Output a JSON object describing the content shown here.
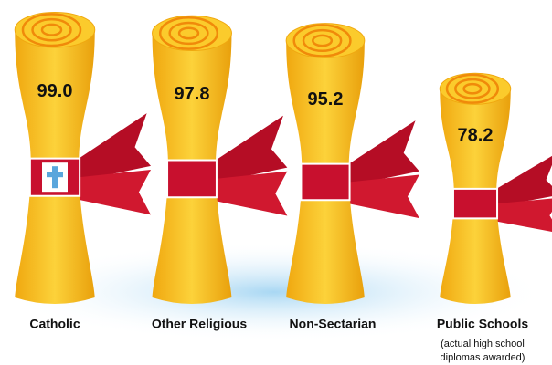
{
  "chart_data": {
    "type": "pictograph",
    "categories": [
      "Catholic",
      "Other Religious",
      "Non-Sectarian",
      "Public Schools"
    ],
    "values": [
      99.0,
      97.8,
      95.2,
      78.2
    ],
    "value_labels": [
      "99.0",
      "97.8",
      "95.2",
      "78.2"
    ],
    "annotation": [
      "(actual high school",
      "diplomas awarded)"
    ],
    "color": "#f5b713",
    "band_color": "#c8102e"
  }
}
